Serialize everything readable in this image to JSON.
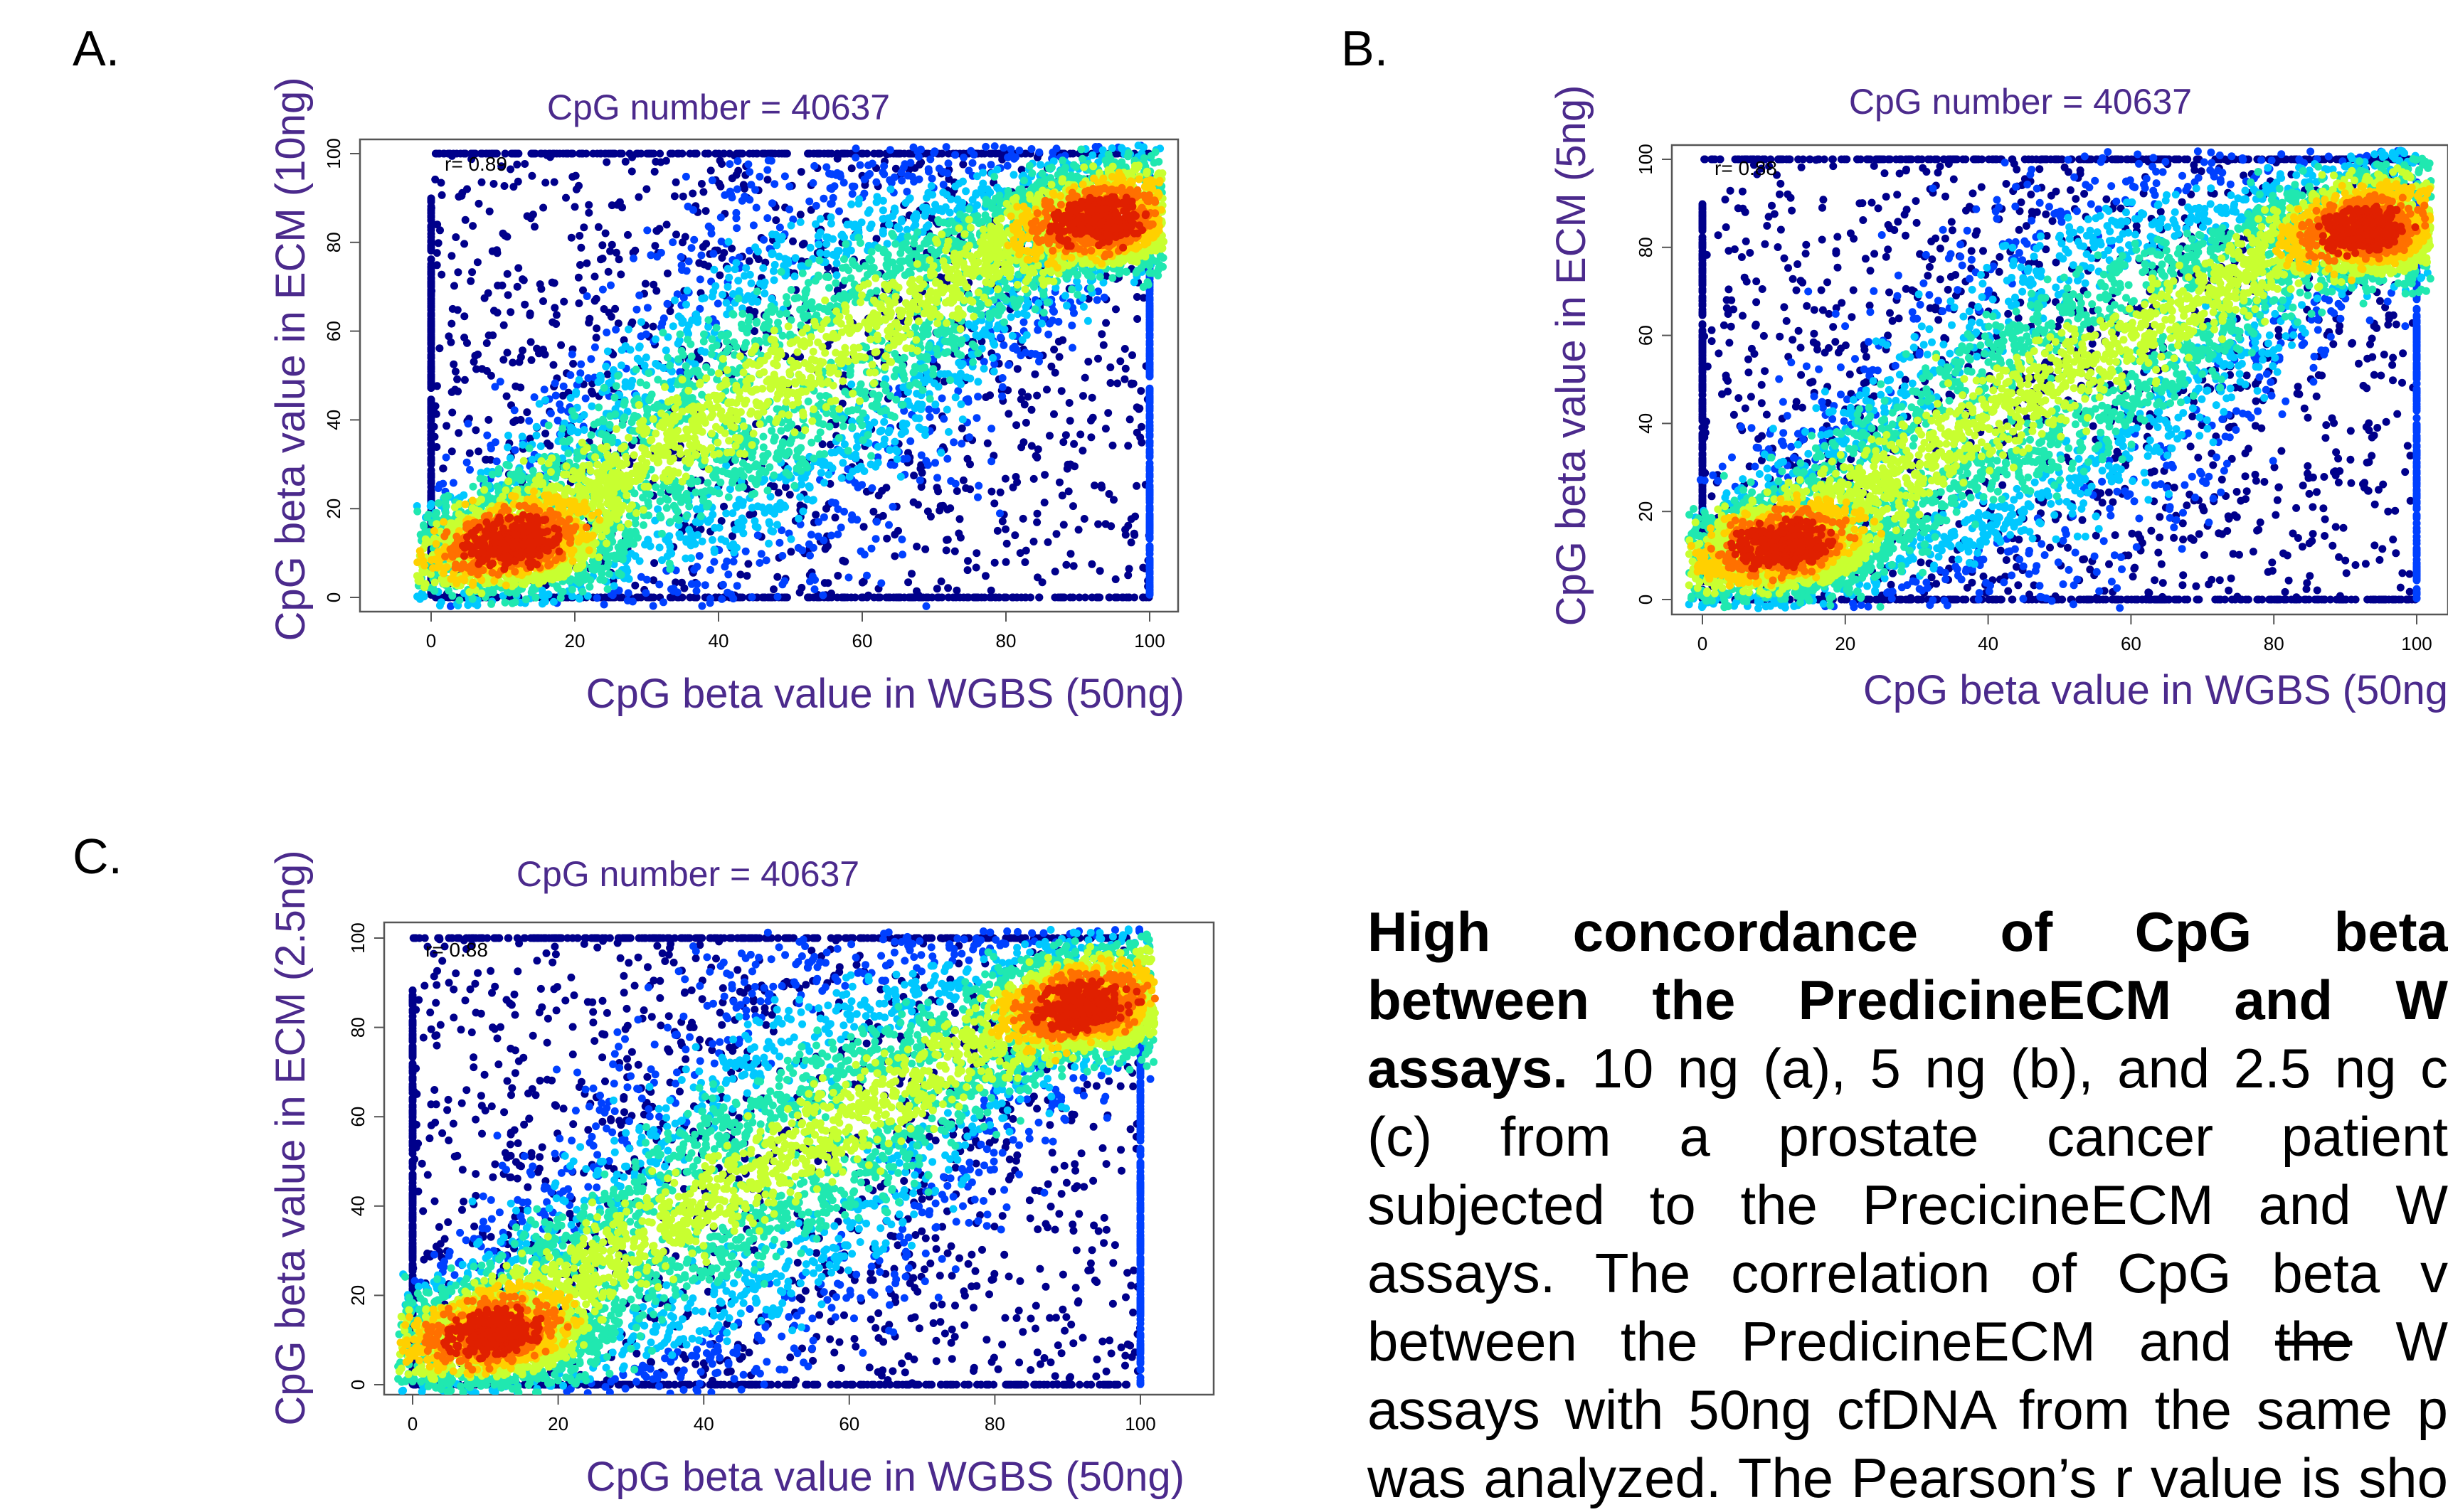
{
  "panels": [
    {
      "letter": "A.",
      "title": "CpG number = 40637",
      "r_label": "r= 0.89",
      "xlabel": "CpG beta value in WGBS (50ng)",
      "ylabel": "CpG beta value in ECM (10ng)"
    },
    {
      "letter": "B.",
      "title": "CpG number = 40637",
      "r_label": "r= 0.88",
      "xlabel": "CpG beta value in WGBS (50ng",
      "ylabel": "CpG beta value in ECM (5ng)"
    },
    {
      "letter": "C.",
      "title": "CpG number = 40637",
      "r_label": "r= 0.88",
      "xlabel": "CpG beta value in WGBS (50ng)",
      "ylabel": "CpG beta value in ECM (2.5ng)"
    }
  ],
  "ticks": {
    "x": [
      "0",
      "20",
      "40",
      "60",
      "80",
      "100"
    ],
    "y": [
      "0",
      "20",
      "40",
      "60",
      "80",
      "100"
    ]
  },
  "colors": {
    "label": "#4b2a8c",
    "point_low": "#00008b",
    "density_scale": [
      "#00008b",
      "#0040ff",
      "#00c8ff",
      "#20e8b0",
      "#c8ff30",
      "#ffd000",
      "#ff7000",
      "#e02000"
    ]
  },
  "caption": {
    "lines": [
      [
        {
          "t": "High concordance of CpG beta",
          "s": "bold"
        }
      ],
      [
        {
          "t": "between the PredicineECM and W",
          "s": "bold"
        }
      ],
      [
        {
          "t": "assays.",
          "s": "bold"
        },
        {
          "t": " 10 ng (a), 5 ng (b), and 2.5 ng c"
        }
      ],
      [
        {
          "t": "(c) from a prostate cancer patient"
        }
      ],
      [
        {
          "t": "subjected to the PrecicineECM and W"
        }
      ],
      [
        {
          "t": "assays. The correlation of CpG beta v"
        }
      ],
      [
        {
          "t": "between the PredicineECM and "
        },
        {
          "t": "the",
          "s": "strike"
        },
        {
          "t": " W"
        }
      ],
      [
        {
          "t": "assays with 50ng cfDNA from the same p"
        }
      ],
      [
        {
          "t": "was analyzed. The Pearson’s r  value is sho"
        }
      ]
    ]
  },
  "chart_data": [
    {
      "type": "scatter",
      "panel": "A",
      "title": "CpG number = 40637",
      "xlabel": "CpG beta value in WGBS (50ng)",
      "ylabel": "CpG beta value in ECM (10ng)",
      "xlim": [
        0,
        100
      ],
      "ylim": [
        0,
        100
      ],
      "annotation": "r= 0.89",
      "n_points": 40637,
      "series": [
        {
          "density_peaks": [
            {
              "x": 12,
              "y": 12
            },
            {
              "x": 94,
              "y": 84
            }
          ],
          "sample_points": [
            [
              5,
              92
            ],
            [
              12,
              70
            ],
            [
              20,
              88
            ],
            [
              28,
              62
            ],
            [
              38,
              75
            ],
            [
              44,
              90
            ],
            [
              30,
              45
            ],
            [
              15,
              55
            ],
            [
              8,
              40
            ],
            [
              22,
              35
            ],
            [
              55,
              20
            ],
            [
              65,
              15
            ],
            [
              75,
              30
            ],
            [
              82,
              10
            ],
            [
              88,
              35
            ],
            [
              92,
              45
            ],
            [
              70,
              50
            ],
            [
              60,
              95
            ],
            [
              48,
              85
            ],
            [
              35,
              80
            ],
            [
              25,
              30
            ],
            [
              40,
              25
            ],
            [
              58,
              40
            ],
            [
              78,
              55
            ],
            [
              95,
              22
            ],
            [
              97,
              5
            ],
            [
              3,
              65
            ],
            [
              10,
              82
            ],
            [
              45,
              60
            ],
            [
              85,
              70
            ]
          ]
        }
      ]
    },
    {
      "type": "scatter",
      "panel": "B",
      "title": "CpG number = 40637",
      "xlabel": "CpG beta value in WGBS (50ng",
      "ylabel": "CpG beta value in ECM (5ng)",
      "xlim": [
        0,
        100
      ],
      "ylim": [
        0,
        100
      ],
      "annotation": "r= 0.88",
      "n_points": 40637,
      "series": [
        {
          "density_peaks": [
            {
              "x": 12,
              "y": 12
            },
            {
              "x": 94,
              "y": 83
            }
          ],
          "sample_points": [
            [
              6,
              88
            ],
            [
              14,
              72
            ],
            [
              22,
              90
            ],
            [
              30,
              60
            ],
            [
              36,
              78
            ],
            [
              46,
              92
            ],
            [
              28,
              48
            ],
            [
              16,
              58
            ],
            [
              9,
              42
            ],
            [
              24,
              38
            ],
            [
              56,
              22
            ],
            [
              66,
              14
            ],
            [
              76,
              28
            ],
            [
              84,
              12
            ],
            [
              89,
              32
            ],
            [
              93,
              48
            ],
            [
              71,
              52
            ],
            [
              62,
              96
            ],
            [
              49,
              86
            ],
            [
              34,
              82
            ],
            [
              26,
              32
            ],
            [
              42,
              26
            ],
            [
              57,
              42
            ],
            [
              79,
              58
            ],
            [
              96,
              20
            ],
            [
              98,
              6
            ],
            [
              4,
              62
            ],
            [
              11,
              84
            ],
            [
              46,
              62
            ],
            [
              86,
              68
            ]
          ]
        }
      ]
    },
    {
      "type": "scatter",
      "panel": "C",
      "title": "CpG number = 40637",
      "xlabel": "CpG beta value in WGBS (50ng)",
      "ylabel": "CpG beta value in ECM (2.5ng)",
      "xlim": [
        0,
        100
      ],
      "ylim": [
        0,
        100
      ],
      "annotation": "r= 0.88",
      "n_points": 40637,
      "series": [
        {
          "density_peaks": [
            {
              "x": 12,
              "y": 11
            },
            {
              "x": 93,
              "y": 84
            }
          ],
          "sample_points": [
            [
              5,
              90
            ],
            [
              13,
              68
            ],
            [
              21,
              86
            ],
            [
              29,
              64
            ],
            [
              37,
              76
            ],
            [
              45,
              88
            ],
            [
              31,
              44
            ],
            [
              14,
              57
            ],
            [
              7,
              41
            ],
            [
              23,
              36
            ],
            [
              54,
              21
            ],
            [
              64,
              16
            ],
            [
              74,
              31
            ],
            [
              81,
              9
            ],
            [
              87,
              36
            ],
            [
              91,
              44
            ],
            [
              69,
              51
            ],
            [
              61,
              94
            ],
            [
              47,
              84
            ],
            [
              36,
              79
            ],
            [
              24,
              31
            ],
            [
              41,
              24
            ],
            [
              59,
              39
            ],
            [
              77,
              56
            ],
            [
              94,
              23
            ],
            [
              96,
              7
            ],
            [
              3,
              66
            ],
            [
              11,
              80
            ],
            [
              44,
              61
            ],
            [
              84,
              71
            ]
          ]
        }
      ]
    }
  ]
}
